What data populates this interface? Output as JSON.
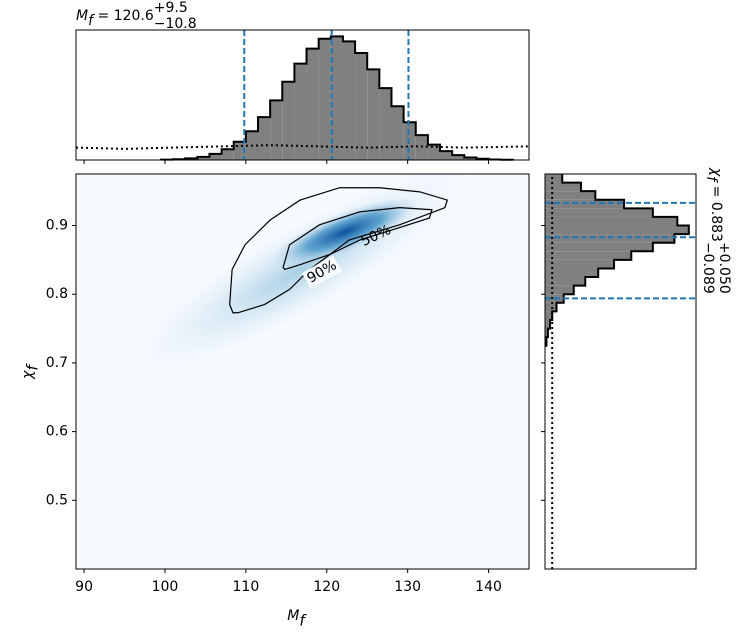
{
  "chart_data": {
    "type": "corner",
    "title": {
      "symbol": "M",
      "sub": "f",
      "eq": " = 120.6",
      "plus": "+9.5",
      "minus": "−10.8"
    },
    "side_title": {
      "symbol": "χ",
      "sub": "f",
      "eq": " = 0.883",
      "plus": "+0.050",
      "minus": "−0.089"
    },
    "xlabel": {
      "symbol": "M",
      "sub": "f"
    },
    "ylabel": {
      "symbol": "χ",
      "sub": "f"
    },
    "xlim": [
      89,
      145
    ],
    "xticks": [
      90,
      100,
      110,
      120,
      130,
      140
    ],
    "ylim": [
      0.4,
      0.975
    ],
    "yticks": [
      0.5,
      0.6,
      0.7,
      0.8,
      0.9
    ],
    "hist_lim": [
      0,
      1.05
    ],
    "fill_color": "#808080",
    "line_color": "#1f77b4",
    "contour_color": "#000000",
    "top_hist": {
      "bins": [
        99.5,
        101,
        102.5,
        104,
        105.5,
        107,
        108.5,
        110,
        111.5,
        113,
        114.5,
        116,
        117.5,
        119,
        120.5,
        122,
        123.5,
        125,
        126.5,
        128,
        129.5,
        131,
        132.5,
        134,
        135.5,
        137,
        138.5,
        140,
        141.5,
        143
      ],
      "values": [
        0.003,
        0.006,
        0.013,
        0.025,
        0.049,
        0.087,
        0.147,
        0.232,
        0.346,
        0.482,
        0.632,
        0.778,
        0.9,
        0.979,
        0.999,
        0.958,
        0.864,
        0.732,
        0.581,
        0.434,
        0.305,
        0.201,
        0.124,
        0.072,
        0.039,
        0.02,
        0.01,
        0.004,
        0.002
      ],
      "prior_x": [
        89,
        95,
        101,
        107,
        113,
        119,
        125,
        131,
        137,
        145
      ],
      "prior_values": [
        0.1,
        0.09,
        0.1,
        0.11,
        0.12,
        0.11,
        0.1,
        0.11,
        0.1,
        0.11
      ],
      "quantiles": [
        109.8,
        120.6,
        130.1
      ]
    },
    "right_hist": {
      "bins": [
        0.725,
        0.7375,
        0.75,
        0.7625,
        0.775,
        0.7875,
        0.8,
        0.8125,
        0.825,
        0.8375,
        0.85,
        0.8625,
        0.875,
        0.8875,
        0.9,
        0.9125,
        0.925,
        0.9375,
        0.95,
        0.9625,
        0.975
      ],
      "values": [
        0.01,
        0.02,
        0.035,
        0.05,
        0.08,
        0.13,
        0.2,
        0.28,
        0.37,
        0.48,
        0.6,
        0.75,
        0.9,
        1.0,
        0.92,
        0.75,
        0.55,
        0.35,
        0.25,
        0.12
      ],
      "prior_y": [
        0.4,
        0.5,
        0.6,
        0.7,
        0.8,
        0.9,
        0.975
      ],
      "prior_values": [
        0.05,
        0.05,
        0.05,
        0.05,
        0.05,
        0.05,
        0.05
      ],
      "quantiles": [
        0.794,
        0.883,
        0.933
      ]
    },
    "contours": [
      {
        "label": "90%",
        "x": [
          108.0,
          108.3,
          109.9,
          113.0,
          116.7,
          121.6,
          126.5,
          131.5,
          134.9,
          134.6,
          129.0,
          122.8,
          117.9,
          115.4,
          112.3,
          109.0,
          108.4,
          108.0
        ],
        "y": [
          0.785,
          0.836,
          0.872,
          0.908,
          0.937,
          0.955,
          0.955,
          0.949,
          0.937,
          0.926,
          0.901,
          0.879,
          0.836,
          0.807,
          0.785,
          0.773,
          0.773,
          0.785
        ]
      },
      {
        "label": "50%",
        "x": [
          114.6,
          115.4,
          119.1,
          124.1,
          129.0,
          133.0,
          132.7,
          129.0,
          124.1,
          120.4,
          116.7,
          114.8,
          114.6
        ],
        "y": [
          0.839,
          0.872,
          0.901,
          0.92,
          0.926,
          0.923,
          0.911,
          0.897,
          0.879,
          0.858,
          0.843,
          0.836,
          0.839
        ]
      }
    ]
  }
}
